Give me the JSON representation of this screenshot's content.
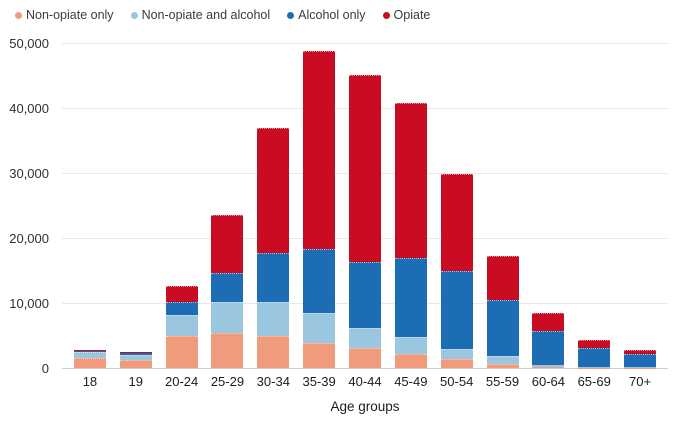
{
  "chart_data": {
    "type": "bar",
    "stacked": true,
    "title": "",
    "xlabel": "Age groups",
    "ylabel": "",
    "ylim": [
      0,
      50000
    ],
    "ytick_interval": 10000,
    "yticks": [
      "0",
      "10,000",
      "20,000",
      "30,000",
      "40,000",
      "50,000"
    ],
    "grid": true,
    "legend_position": "top-left",
    "categories": [
      "18",
      "19",
      "20-24",
      "25-29",
      "30-34",
      "35-39",
      "40-44",
      "45-49",
      "50-54",
      "55-59",
      "60-64",
      "65-69",
      "70+"
    ],
    "series": [
      {
        "name": "Non-opiate only",
        "color": "#f09b7b",
        "values": [
          1400,
          1100,
          4700,
          5200,
          4800,
          3700,
          2900,
          2000,
          1200,
          500,
          200,
          50,
          50
        ]
      },
      {
        "name": "Non-opiate and alcohol",
        "color": "#9bc6e0",
        "values": [
          700,
          600,
          3100,
          4700,
          5000,
          4500,
          3000,
          2400,
          1400,
          1000,
          300,
          100,
          50
        ]
      },
      {
        "name": "Alcohol only",
        "color": "#1c6db3",
        "values": [
          250,
          300,
          1900,
          4300,
          7400,
          9600,
          10000,
          12000,
          11900,
          8500,
          5100,
          2700,
          1850
        ]
      },
      {
        "name": "Opiate",
        "color": "#c90c22",
        "values": [
          150,
          200,
          2300,
          8700,
          19100,
          30400,
          28600,
          23700,
          14800,
          6600,
          2600,
          1150,
          550
        ]
      }
    ],
    "totals": [
      2500,
      2200,
      12000,
      22900,
      36300,
      48200,
      44500,
      40100,
      29300,
      16600,
      8200,
      4000,
      2500
    ]
  },
  "legend": {
    "items": [
      "Non-opiate only",
      "Non-opiate and alcohol",
      "Alcohol only",
      "Opiate"
    ]
  },
  "colors": {
    "non_opiate_only": "#f09b7b",
    "non_opiate_and_alcohol": "#9bc6e0",
    "alcohol_only": "#1c6db3",
    "opiate": "#c90c22",
    "gridline": "#e9e9e9",
    "axis_line": "#cfcfcf"
  }
}
